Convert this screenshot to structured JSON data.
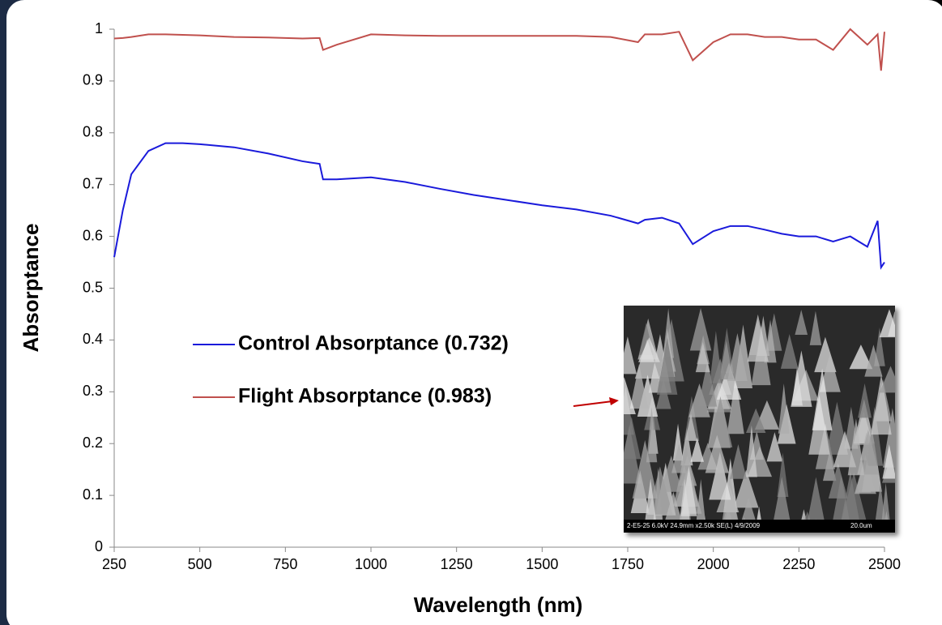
{
  "chart_data": {
    "type": "line",
    "x_label": "Wavelength (nm)",
    "y_label": "Absorptance",
    "x": [
      250,
      275,
      300,
      350,
      400,
      450,
      500,
      600,
      700,
      800,
      850,
      860,
      900,
      1000,
      1100,
      1200,
      1300,
      1400,
      1500,
      1600,
      1700,
      1780,
      1800,
      1850,
      1900,
      1940,
      2000,
      2050,
      2100,
      2150,
      2200,
      2250,
      2300,
      2350,
      2400,
      2450,
      2480,
      2490,
      2500
    ],
    "series": [
      {
        "name": "Control Absorptance (0.732)",
        "color": "#1a1adb",
        "values": [
          0.56,
          0.65,
          0.72,
          0.765,
          0.78,
          0.78,
          0.778,
          0.772,
          0.76,
          0.745,
          0.74,
          0.71,
          0.71,
          0.714,
          0.705,
          0.692,
          0.68,
          0.67,
          0.66,
          0.652,
          0.64,
          0.625,
          0.632,
          0.636,
          0.625,
          0.585,
          0.61,
          0.62,
          0.62,
          0.613,
          0.605,
          0.6,
          0.6,
          0.59,
          0.6,
          0.58,
          0.63,
          0.54,
          0.55
        ]
      },
      {
        "name": "Flight Absorptance (0.983)",
        "color": "#c0504d",
        "values": [
          0.982,
          0.983,
          0.985,
          0.99,
          0.99,
          0.989,
          0.988,
          0.985,
          0.984,
          0.982,
          0.983,
          0.96,
          0.97,
          0.99,
          0.988,
          0.987,
          0.987,
          0.987,
          0.987,
          0.987,
          0.985,
          0.975,
          0.99,
          0.99,
          0.995,
          0.94,
          0.975,
          0.99,
          0.99,
          0.985,
          0.985,
          0.98,
          0.98,
          0.96,
          1.0,
          0.97,
          0.99,
          0.92,
          0.995
        ]
      }
    ],
    "xlim": [
      250,
      2500
    ],
    "xticks": [
      250,
      500,
      750,
      1000,
      1250,
      1500,
      1750,
      2000,
      2250,
      2500
    ],
    "ylim": [
      0,
      1
    ],
    "yticks": [
      0,
      0.1,
      0.2,
      0.3,
      0.4,
      0.5,
      0.6,
      0.7,
      0.8,
      0.9,
      1
    ],
    "grid": false,
    "inset": {
      "caption": "2-E5-25 6.0kV 24.9mm x2.50k SE(L) 4/9/2009",
      "scale": "20.0um"
    }
  }
}
